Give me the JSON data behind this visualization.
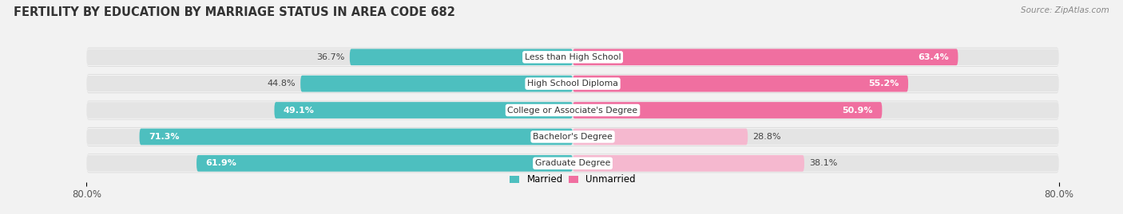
{
  "title": "FERTILITY BY EDUCATION BY MARRIAGE STATUS IN AREA CODE 682",
  "source": "Source: ZipAtlas.com",
  "categories": [
    "Less than High School",
    "High School Diploma",
    "College or Associate's Degree",
    "Bachelor's Degree",
    "Graduate Degree"
  ],
  "married_values": [
    36.7,
    44.8,
    49.1,
    71.3,
    61.9
  ],
  "unmarried_values": [
    63.4,
    55.2,
    50.9,
    28.8,
    38.1
  ],
  "married_color": "#4dbfbf",
  "unmarried_color": "#f06fa0",
  "unmarried_light_color": "#f5b8cf",
  "bar_height": 0.62,
  "background_color": "#f2f2f2",
  "bar_bg_color": "#e4e4e4",
  "title_fontsize": 10.5,
  "label_fontsize": 8.0,
  "tick_fontsize": 8.5,
  "legend_fontsize": 8.5,
  "married_label_white": [
    false,
    false,
    true,
    true,
    true
  ],
  "unmarried_label_white": [
    true,
    true,
    true,
    false,
    false
  ]
}
